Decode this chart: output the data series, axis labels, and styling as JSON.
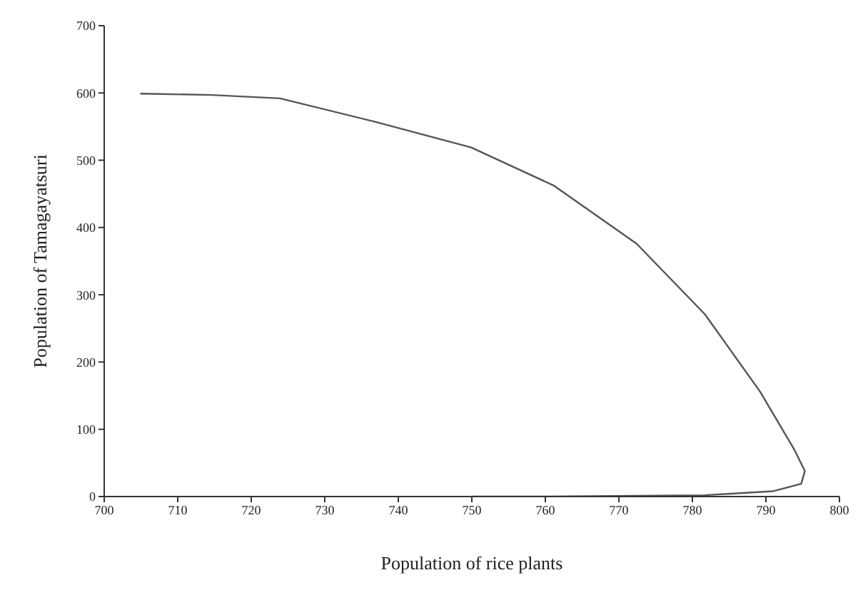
{
  "chart_data": {
    "type": "line",
    "xlabel": "Population of rice plants",
    "ylabel": "Population of Tamagayatsuri",
    "xlim": [
      700,
      800
    ],
    "xticks": [
      700,
      710,
      720,
      730,
      740,
      750,
      760,
      770,
      780,
      790,
      800
    ],
    "ylim": [
      0,
      700
    ],
    "yticks": [
      0,
      100,
      200,
      300,
      400,
      500,
      600,
      700
    ],
    "grid": false,
    "marker": "none",
    "line_style": "solid",
    "series": [
      {
        "color": "#555555",
        "x": [
          704.9,
          714.6,
          723.9,
          736.9,
          749.9,
          761.2,
          772.4,
          781.7,
          789.2,
          793.8,
          795.3,
          794.8,
          791,
          781.7,
          772.4,
          760,
          750
        ],
        "values": [
          599,
          597,
          592,
          557,
          519,
          462,
          376,
          271,
          156,
          71,
          38,
          19,
          8,
          2,
          1,
          0,
          0
        ]
      }
    ]
  }
}
